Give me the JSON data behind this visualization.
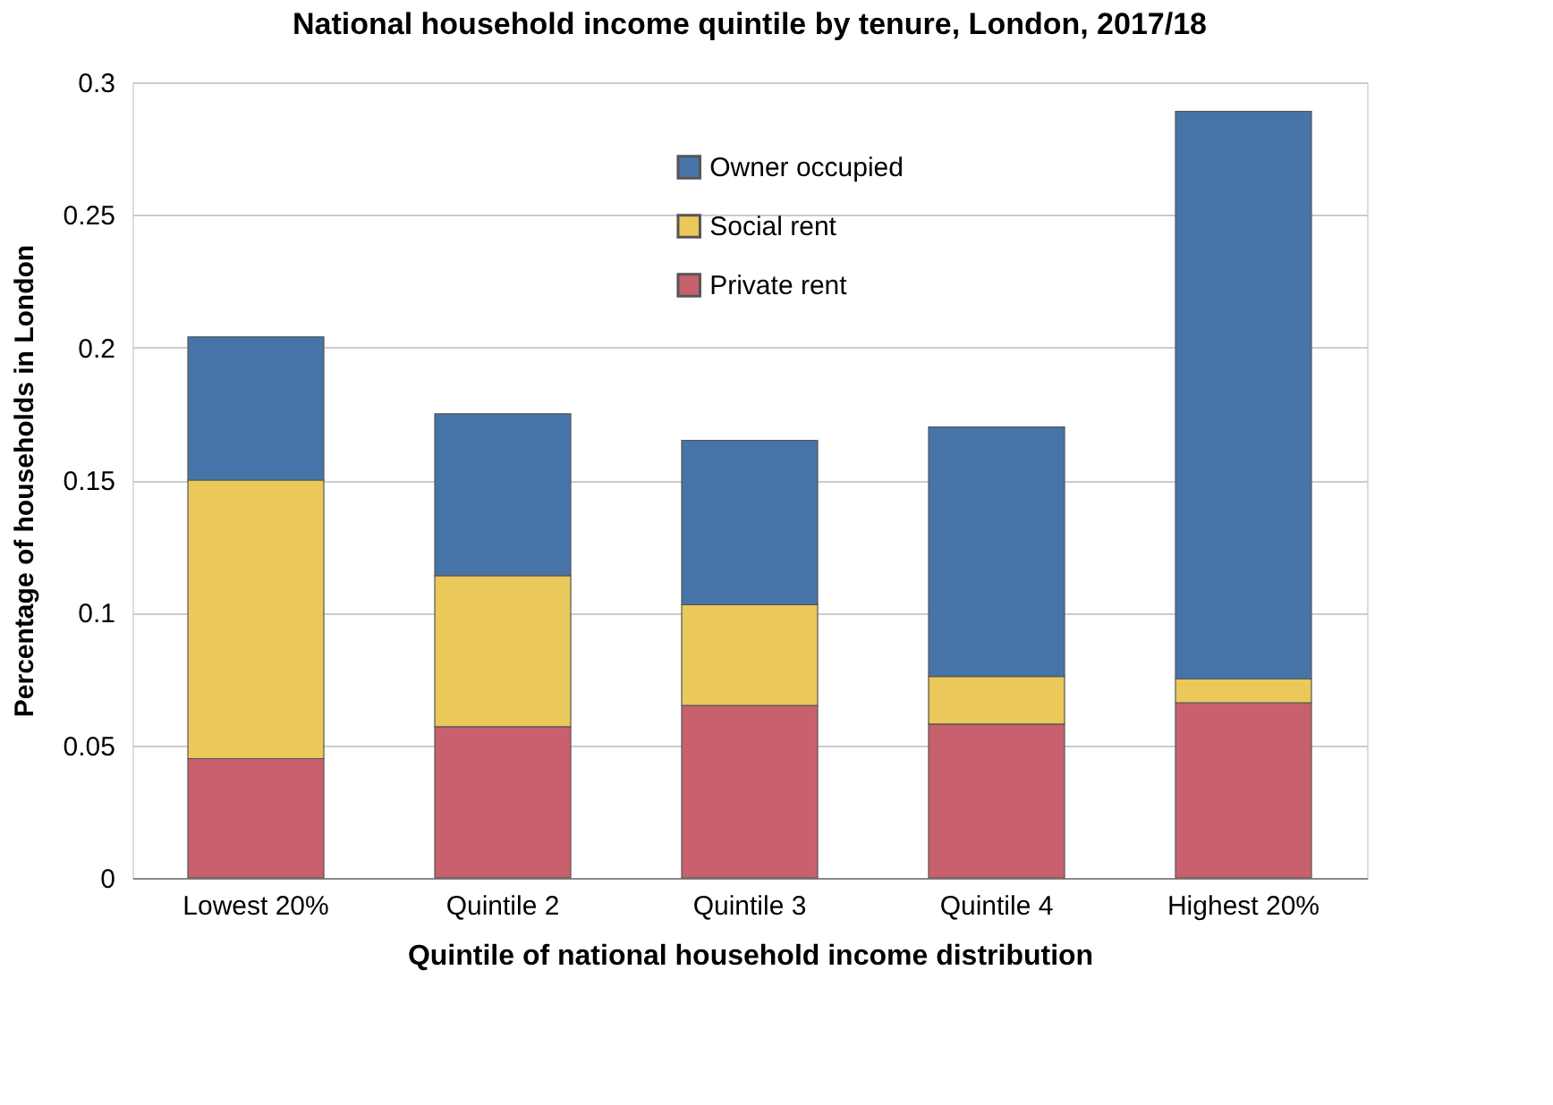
{
  "chart_data": {
    "type": "bar",
    "title": "National household income quintile by tenure, London, 2017/18",
    "xlabel": "Quintile of national household income distribution",
    "ylabel": "Percentage of households in London",
    "categories": [
      "Lowest 20%",
      "Quintile 2",
      "Quintile 3",
      "Quintile 4",
      "Highest 20%"
    ],
    "stacked": true,
    "series": [
      {
        "name": "Private rent",
        "color": "#c9606e",
        "values": [
          0.045,
          0.057,
          0.065,
          0.058,
          0.066
        ]
      },
      {
        "name": "Social rent",
        "color": "#ebc85a",
        "values": [
          0.105,
          0.057,
          0.038,
          0.018,
          0.009
        ]
      },
      {
        "name": "Owner occupied",
        "color": "#4674a8",
        "values": [
          0.054,
          0.061,
          0.062,
          0.094,
          0.214
        ]
      }
    ],
    "ylim": [
      0,
      0.3
    ],
    "yticks": [
      0,
      0.05,
      0.1,
      0.15,
      0.2,
      0.25,
      0.3
    ],
    "grid": "y",
    "legend": "top"
  }
}
